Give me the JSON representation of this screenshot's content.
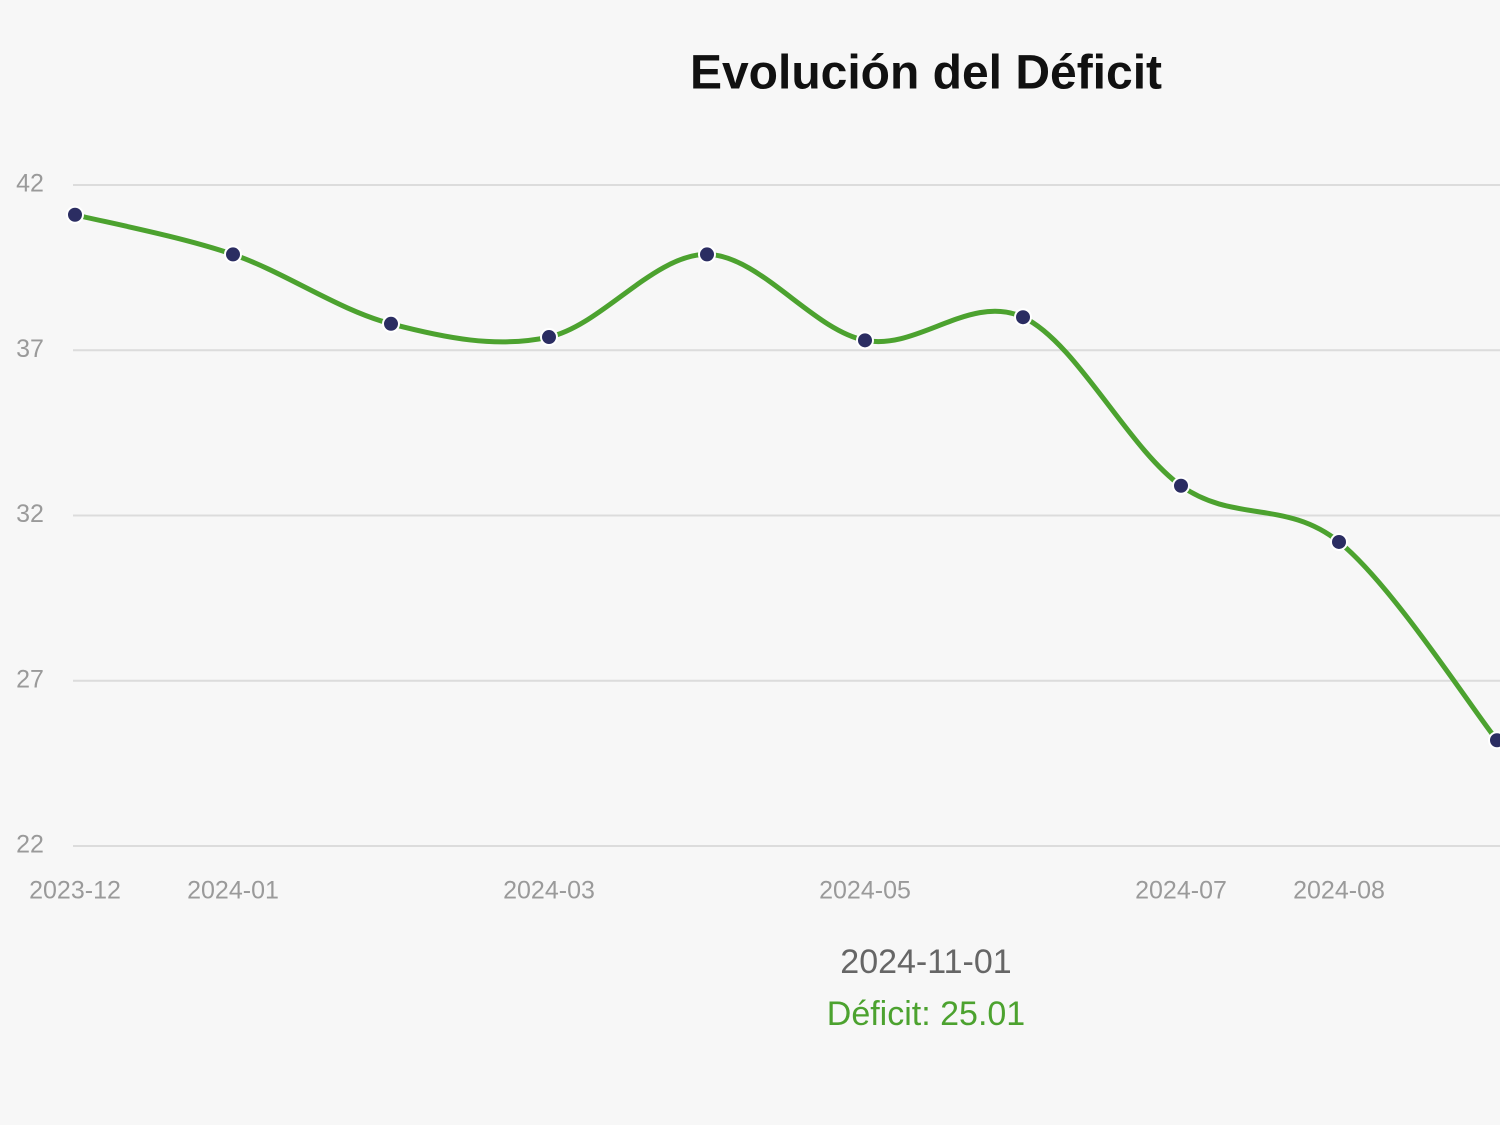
{
  "chart_data": {
    "type": "line",
    "title": "Evolución del Déficit",
    "categories": [
      "2023-12",
      "2024-01",
      null,
      "2024-03",
      null,
      "2024-05",
      null,
      "2024-07",
      "2024-08",
      null
    ],
    "series": [
      {
        "name": "Déficit",
        "color": "#4ca22f",
        "marker_color": "#2b2d62",
        "values": [
          41.1,
          39.9,
          37.8,
          37.4,
          39.9,
          37.3,
          38.0,
          32.9,
          31.2,
          25.2
        ]
      }
    ],
    "ylim": [
      22,
      42
    ],
    "yticks": [
      22,
      27,
      32,
      37,
      42
    ],
    "grid": true,
    "tooltip": {
      "title": "2024-11-01",
      "text": "Déficit: 25.01"
    }
  }
}
